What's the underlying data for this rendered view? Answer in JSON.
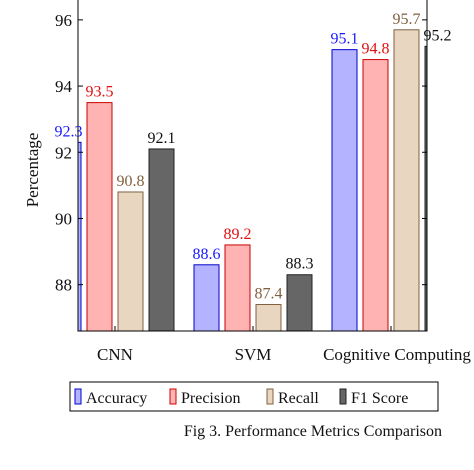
{
  "figure": {
    "caption": "Fig 3. Performance Metrics Comparison"
  },
  "chart_data": {
    "type": "bar",
    "title": "",
    "xlabel": "",
    "ylabel": "Percentage",
    "categories": [
      "CNN",
      "SVM",
      "Cognitive Computing"
    ],
    "series": [
      {
        "name": "Accuracy",
        "values": [
          92.3,
          88.6,
          95.1
        ],
        "fill": "#b3b3ff",
        "stroke": "#0000cc",
        "label_color": "#1a1aff"
      },
      {
        "name": "Precision",
        "values": [
          93.5,
          89.2,
          94.8
        ],
        "fill": "#ffb3b3",
        "stroke": "#cc0000",
        "label_color": "#e01010"
      },
      {
        "name": "Recall",
        "values": [
          90.8,
          87.4,
          95.7
        ],
        "fill": "#e8d6c0",
        "stroke": "#806040",
        "label_color": "#806040"
      },
      {
        "name": "F1 Score",
        "values": [
          92.1,
          88.3,
          95.2
        ],
        "fill": "#666666",
        "stroke": "#222222",
        "label_color": "#111111"
      }
    ],
    "yticks": [
      88,
      90,
      92,
      94,
      96
    ],
    "ylim": [
      86.6,
      96.6
    ],
    "grid": false,
    "legend_position": "bottom"
  }
}
